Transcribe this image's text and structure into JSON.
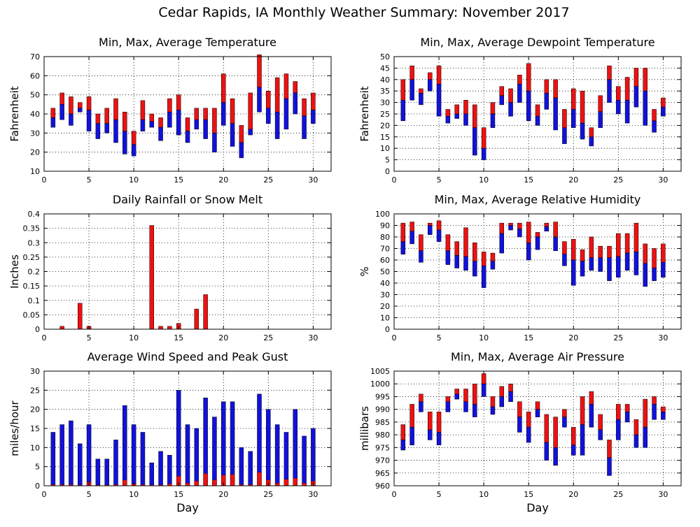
{
  "page": {
    "title": "Cedar Rapids, IA Monthly Weather Summary: November 2017"
  },
  "colors": {
    "red": "#ee1111",
    "blue": "#1111dd",
    "grid": "#000000",
    "axis": "#000000"
  },
  "chart_data": [
    {
      "id": "temp",
      "type": "bar",
      "title": "Min, Max, Average Temperature",
      "xlabel": "",
      "ylabel": "Fahrenheit",
      "xlim": [
        0,
        32
      ],
      "ylim": [
        10,
        70
      ],
      "xticks": [
        0,
        5,
        10,
        15,
        20,
        25,
        30
      ],
      "yticks": [
        10,
        20,
        30,
        40,
        50,
        60,
        70
      ],
      "grid": true,
      "x": [
        1,
        2,
        3,
        4,
        5,
        6,
        7,
        8,
        9,
        10,
        11,
        12,
        13,
        14,
        15,
        16,
        17,
        18,
        19,
        20,
        21,
        22,
        23,
        24,
        25,
        26,
        27,
        28,
        29,
        30
      ],
      "min": [
        33,
        37,
        34,
        41,
        31,
        27,
        30,
        25,
        19,
        18,
        31,
        33,
        26,
        33,
        29,
        25,
        32,
        27,
        20,
        34,
        23,
        17,
        29,
        41,
        35,
        27,
        32,
        40,
        27,
        35
      ],
      "avg": [
        38,
        45,
        40,
        43,
        42,
        35,
        35,
        37,
        31,
        24,
        37,
        36,
        33,
        41,
        42,
        31,
        37,
        37,
        30,
        46,
        35,
        25,
        32,
        54,
        43,
        41,
        48,
        51,
        39,
        42
      ],
      "max": [
        43,
        51,
        49,
        46,
        49,
        40,
        43,
        48,
        41,
        31,
        47,
        40,
        38,
        48,
        50,
        38,
        43,
        43,
        43,
        61,
        48,
        34,
        51,
        71,
        52,
        59,
        61,
        57,
        48,
        51
      ]
    },
    {
      "id": "dewpoint",
      "type": "bar",
      "title": "Min, Max, Average Dewpoint Temperature",
      "xlabel": "",
      "ylabel": "Fahrenheit",
      "xlim": [
        0,
        32
      ],
      "ylim": [
        0,
        50
      ],
      "xticks": [
        0,
        5,
        10,
        15,
        20,
        25,
        30
      ],
      "yticks": [
        0,
        5,
        10,
        15,
        20,
        25,
        30,
        35,
        40,
        45,
        50
      ],
      "grid": true,
      "x": [
        1,
        2,
        3,
        4,
        5,
        6,
        7,
        8,
        9,
        10,
        11,
        12,
        13,
        14,
        15,
        16,
        17,
        18,
        19,
        20,
        21,
        22,
        23,
        24,
        25,
        26,
        27,
        28,
        29,
        30
      ],
      "min": [
        22,
        31,
        29,
        35,
        24,
        21,
        23,
        20,
        7,
        5,
        19,
        29,
        24,
        30,
        22,
        20,
        27,
        18,
        12,
        19,
        14,
        11,
        19,
        30,
        25,
        21,
        28,
        20,
        17,
        24
      ],
      "avg": [
        31,
        40,
        34,
        40,
        38,
        24,
        25,
        25,
        19,
        10,
        25,
        33,
        30,
        38,
        35,
        24,
        34,
        32,
        19,
        27,
        21,
        15,
        26,
        40,
        31,
        31,
        37,
        35,
        22,
        28
      ],
      "max": [
        40,
        46,
        36,
        43,
        46,
        27,
        29,
        31,
        29,
        19,
        30,
        37,
        36,
        42,
        47,
        29,
        40,
        40,
        27,
        36,
        35,
        19,
        33,
        46,
        37,
        41,
        45,
        45,
        27,
        32
      ]
    },
    {
      "id": "rain",
      "type": "bar",
      "title": "Daily Rainfall or Snow Melt",
      "xlabel": "",
      "ylabel": "Inches",
      "xlim": [
        0,
        32
      ],
      "ylim": [
        0,
        0.4
      ],
      "xticks": [
        0,
        5,
        10,
        15,
        20,
        25,
        30
      ],
      "yticks": [
        0,
        0.05,
        0.1,
        0.15,
        0.2,
        0.25,
        0.3,
        0.35,
        0.4
      ],
      "ytick_labels": [
        "0",
        "0.05",
        "0.1",
        "0.15",
        "0.2",
        "0.25",
        "0.3",
        "0.35",
        "0.4"
      ],
      "grid": true,
      "x": [
        2,
        4,
        5,
        12,
        13,
        14,
        15,
        17,
        18
      ],
      "values": [
        0.01,
        0.09,
        0.01,
        0.36,
        0.01,
        0.01,
        0.02,
        0.07,
        0.12
      ]
    },
    {
      "id": "humidity",
      "type": "bar",
      "title": "Min, Max, Average Relative Humidity",
      "xlabel": "",
      "ylabel": "%",
      "xlim": [
        0,
        32
      ],
      "ylim": [
        0,
        100
      ],
      "xticks": [
        0,
        5,
        10,
        15,
        20,
        25,
        30
      ],
      "yticks": [
        0,
        10,
        20,
        30,
        40,
        50,
        60,
        70,
        80,
        90,
        100
      ],
      "grid": true,
      "x": [
        1,
        2,
        3,
        4,
        5,
        6,
        7,
        8,
        9,
        10,
        11,
        12,
        13,
        14,
        15,
        16,
        17,
        18,
        19,
        20,
        21,
        22,
        23,
        24,
        25,
        26,
        27,
        28,
        29,
        30
      ],
      "min": [
        65,
        74,
        58,
        82,
        76,
        56,
        53,
        51,
        46,
        36,
        52,
        66,
        86,
        80,
        60,
        69,
        85,
        68,
        55,
        38,
        46,
        51,
        50,
        42,
        45,
        51,
        47,
        37,
        42,
        45
      ],
      "avg": [
        76,
        85,
        68,
        90,
        86,
        68,
        64,
        63,
        59,
        55,
        59,
        83,
        90,
        87,
        75,
        80,
        89,
        80,
        65,
        60,
        59,
        62,
        62,
        62,
        63,
        66,
        67,
        57,
        53,
        58
      ],
      "max": [
        92,
        93,
        82,
        92,
        94,
        82,
        76,
        88,
        75,
        67,
        66,
        92,
        92,
        92,
        93,
        84,
        92,
        93,
        76,
        78,
        69,
        80,
        72,
        72,
        83,
        83,
        92,
        74,
        70,
        74
      ]
    },
    {
      "id": "wind",
      "type": "bar",
      "title": "Average Wind Speed and Peak Gust",
      "xlabel": "Day",
      "ylabel": "miles/hour",
      "xlim": [
        0,
        32
      ],
      "ylim": [
        0,
        30
      ],
      "xticks": [
        0,
        5,
        10,
        15,
        20,
        25,
        30
      ],
      "yticks": [
        0,
        5,
        10,
        15,
        20,
        25,
        30
      ],
      "grid": true,
      "x": [
        1,
        2,
        3,
        4,
        5,
        6,
        7,
        8,
        9,
        10,
        11,
        12,
        13,
        14,
        15,
        16,
        17,
        18,
        19,
        20,
        21,
        22,
        23,
        24,
        25,
        26,
        27,
        28,
        29,
        30
      ],
      "gust": [
        14,
        16,
        17,
        11,
        16,
        7,
        7,
        12,
        21,
        16,
        14,
        6,
        9,
        8,
        25,
        16,
        15,
        23,
        18,
        22,
        22,
        10,
        9,
        24,
        20,
        16,
        14,
        20,
        13,
        15
      ],
      "avg": [
        0.3,
        0.3,
        0.3,
        0.2,
        1,
        0.2,
        0.2,
        0.3,
        1.5,
        0.5,
        0.3,
        0.2,
        0.2,
        0.5,
        2.5,
        0.7,
        1.2,
        3.2,
        1.5,
        2.8,
        3,
        0.3,
        0.3,
        3.5,
        1.5,
        0.7,
        1.7,
        2,
        0.7,
        1.2
      ]
    },
    {
      "id": "pressure",
      "type": "bar",
      "title": "Min, Max, Average Air Pressure",
      "xlabel": "Day",
      "ylabel": "millibars",
      "xlim": [
        0,
        32
      ],
      "ylim": [
        960,
        1005
      ],
      "xticks": [
        0,
        5,
        10,
        15,
        20,
        25,
        30
      ],
      "yticks": [
        960,
        965,
        970,
        975,
        980,
        985,
        990,
        995,
        1000,
        1005
      ],
      "grid": true,
      "x": [
        1,
        2,
        3,
        4,
        5,
        6,
        7,
        8,
        9,
        10,
        11,
        12,
        13,
        14,
        15,
        16,
        17,
        18,
        19,
        20,
        21,
        22,
        23,
        24,
        25,
        26,
        27,
        28,
        29,
        30
      ],
      "min": [
        974,
        976,
        989,
        978,
        976,
        989,
        994,
        989,
        987,
        995,
        988,
        991,
        993,
        981,
        977,
        987,
        970,
        968,
        983,
        972,
        972,
        983,
        978,
        964,
        978,
        985,
        975,
        975,
        986,
        986
      ],
      "avg": [
        978,
        983,
        993,
        982,
        981,
        993,
        996,
        993,
        992,
        1000,
        991,
        995,
        997,
        987,
        983,
        990,
        977,
        975,
        987,
        976,
        984,
        992,
        982,
        971,
        986,
        989,
        980,
        983,
        992,
        989
      ],
      "max": [
        984,
        992,
        996,
        989,
        989,
        995,
        998,
        998,
        1000,
        1004,
        995,
        999,
        1000,
        993,
        989,
        993,
        988,
        987,
        990,
        983,
        995,
        997,
        988,
        978,
        992,
        992,
        986,
        994,
        995,
        991
      ]
    }
  ]
}
